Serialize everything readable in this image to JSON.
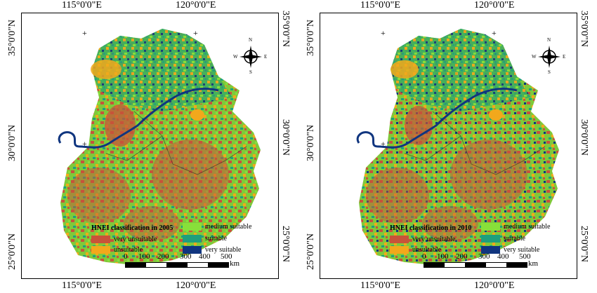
{
  "axes": {
    "lon_labels": [
      "115°0'0\"E",
      "120°0'0\"E"
    ],
    "lat_labels": [
      "35°0'0\"N",
      "30°0'0\"N",
      "25°0'0\"N"
    ]
  },
  "compass": {
    "n": "N",
    "s": "S",
    "e": "E",
    "w": "W"
  },
  "legend": {
    "items": [
      {
        "label": "very unsuitable",
        "color": "#c8533a"
      },
      {
        "label": "unsuitable",
        "color": "#f2a81c"
      },
      {
        "label": "medium suitable",
        "color": "#88e03a"
      },
      {
        "label": "suitable",
        "color": "#1f9f7d"
      },
      {
        "label": "very suitable",
        "color": "#10357f"
      }
    ]
  },
  "scalebar": {
    "ticks": [
      "0",
      "100",
      "200",
      "300",
      "400",
      "500"
    ],
    "unit": "km"
  },
  "maps": [
    {
      "title": "HNEI classification in 2005"
    },
    {
      "title": "HNEI classification in 2010"
    }
  ]
}
